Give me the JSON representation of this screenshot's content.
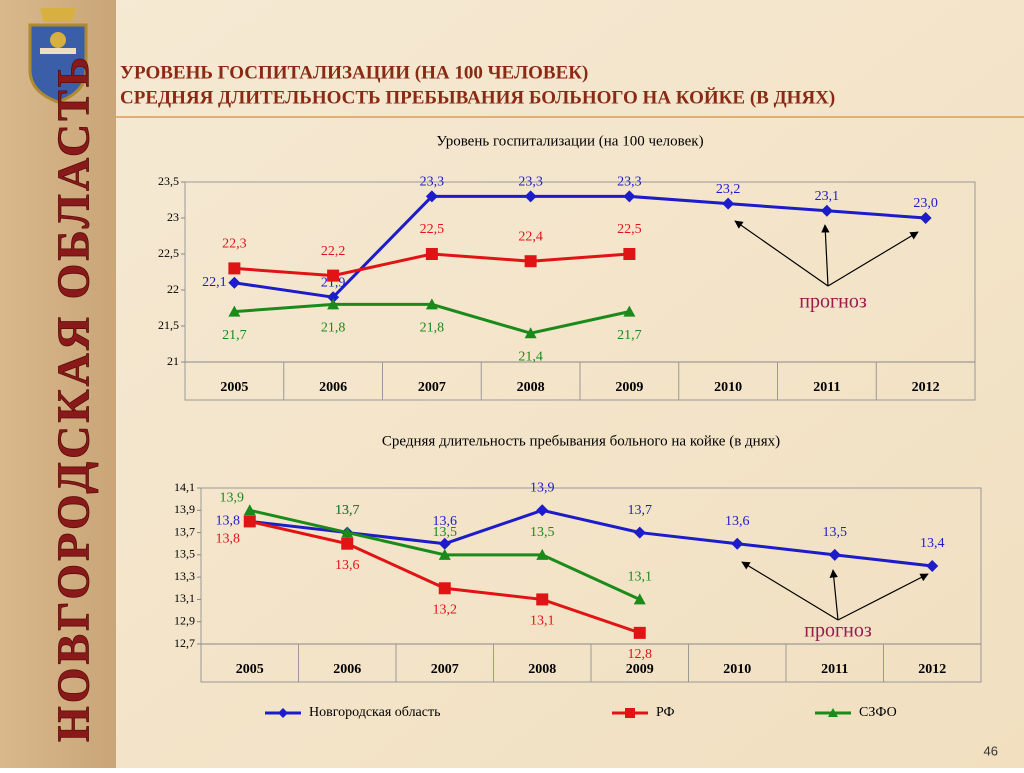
{
  "header": {
    "title1": "УРОВЕНЬ ГОСПИТАЛИЗАЦИИ (НА 100 ЧЕЛОВЕК)",
    "title2": "СРЕДНЯЯ ДЛИТЕЛЬНОСТЬ ПРЕБЫВАНИЯ БОЛЬНОГО НА КОЙКЕ (В ДНЯХ)"
  },
  "sidebar": "НОВГОРОДСКАЯ ОБЛАСТЬ",
  "page_number": "46",
  "chart_data": [
    {
      "type": "line",
      "title": "Уровень госпитализации (на 100 человек)",
      "categories": [
        "2005",
        "2006",
        "2007",
        "2008",
        "2009",
        "2010",
        "2011",
        "2012"
      ],
      "ylim": [
        21,
        23.5
      ],
      "yticks": [
        21,
        {
          "value": 21.5,
          "label": "21,5"
        },
        22,
        {
          "value": 22.5,
          "label": "22,5"
        },
        23,
        {
          "value": 23.5,
          "label": "23,5"
        }
      ],
      "annotation": "прогноз",
      "series": [
        {
          "color": "#1c1cc8",
          "values": [
            22.1,
            21.9,
            23.3,
            23.3,
            23.3,
            23.2,
            23.1,
            23.0
          ],
          "value_labels": [
            "22,1",
            "21,9",
            "23,3",
            "23,3",
            "23,3",
            "23,2",
            "23,1",
            "23,0"
          ]
        },
        {
          "color": "#e01414",
          "values": [
            22.3,
            22.2,
            22.5,
            22.4,
            22.5,
            null,
            null,
            null
          ],
          "value_labels": [
            "22,3",
            "22,2",
            "22,5",
            "22,4",
            "22,5",
            null,
            null,
            null
          ]
        },
        {
          "color": "#1a8a1a",
          "values": [
            21.7,
            21.8,
            21.8,
            21.4,
            21.7,
            null,
            null,
            null
          ],
          "value_labels": [
            "21,7",
            "21,8",
            "21,8",
            "21,4",
            "21,7",
            null,
            null,
            null
          ]
        }
      ]
    },
    {
      "type": "line",
      "title": "Средняя длительность пребывания больного на койке (в днях)",
      "categories": [
        "2005",
        "2006",
        "2007",
        "2008",
        "2009",
        "2010",
        "2011",
        "2012"
      ],
      "ylim": [
        12.7,
        14.1
      ],
      "yticks": [
        {
          "value": 12.7,
          "label": "12,7"
        },
        {
          "value": 12.9,
          "label": "12,9"
        },
        {
          "value": 13.1,
          "label": "13,1"
        },
        {
          "value": 13.3,
          "label": "13,3"
        },
        {
          "value": 13.5,
          "label": "13,5"
        },
        {
          "value": 13.7,
          "label": "13,7"
        },
        {
          "value": 13.9,
          "label": "13,9"
        },
        {
          "value": 14.1,
          "label": "14,1"
        }
      ],
      "annotation": "прогноз",
      "legend": "bottom",
      "series": [
        {
          "name": "Новгородская область",
          "color": "#1c1cc8",
          "values": [
            13.8,
            13.7,
            13.6,
            13.9,
            13.7,
            13.6,
            13.5,
            13.4
          ],
          "value_labels": [
            "13,8",
            "13,7",
            "13,6",
            "13,9",
            "13,7",
            "13,6",
            "13,5",
            "13,4"
          ]
        },
        {
          "name": "РФ",
          "color": "#e01414",
          "values": [
            13.8,
            13.6,
            13.2,
            13.1,
            12.8,
            null,
            null,
            null
          ],
          "value_labels": [
            "13,8",
            "13,6",
            "13,2",
            "13,1",
            "12,8",
            null,
            null,
            null
          ]
        },
        {
          "name": "СЗФО",
          "color": "#1a8a1a",
          "values": [
            13.9,
            13.7,
            13.5,
            13.5,
            13.1,
            null,
            null,
            null
          ],
          "value_labels": [
            "13,9",
            "13,7",
            "13,5",
            "13,5",
            "13,1",
            null,
            null,
            null
          ]
        }
      ]
    }
  ]
}
